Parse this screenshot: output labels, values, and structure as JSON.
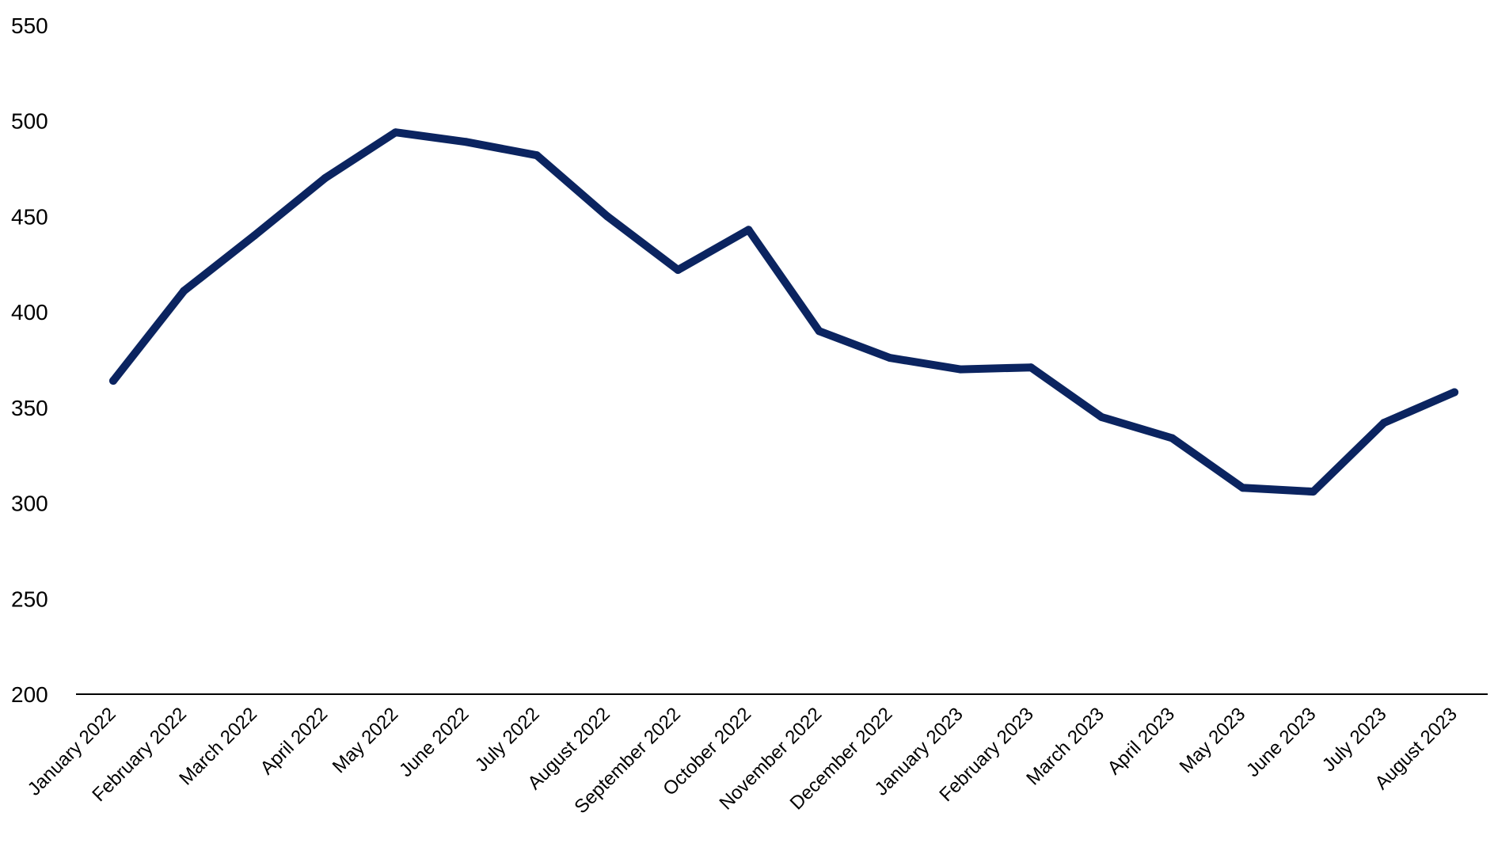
{
  "chart_data": {
    "type": "line",
    "title": "",
    "xlabel": "",
    "ylabel": "",
    "categories": [
      "January 2022",
      "February 2022",
      "March 2022",
      "April 2022",
      "May 2022",
      "June 2022",
      "July 2022",
      "August 2022",
      "September 2022",
      "October 2022",
      "November 2022",
      "December 2022",
      "January 2023",
      "February 2023",
      "March 2023",
      "April 2023",
      "May 2023",
      "June 2023",
      "July 2023",
      "August 2023"
    ],
    "series": [
      {
        "values": [
          364,
          411,
          440,
          470,
          494,
          489,
          482,
          450,
          422,
          443,
          390,
          376,
          370,
          371,
          345,
          334,
          308,
          306,
          342,
          358
        ],
        "color": "#0b2460"
      }
    ],
    "ylim": [
      200,
      550
    ],
    "yticks": [
      "550",
      "500",
      "450",
      "400",
      "350",
      "300",
      "250",
      "200"
    ],
    "grid": false,
    "legend": "none",
    "axis_color": "#000000"
  }
}
